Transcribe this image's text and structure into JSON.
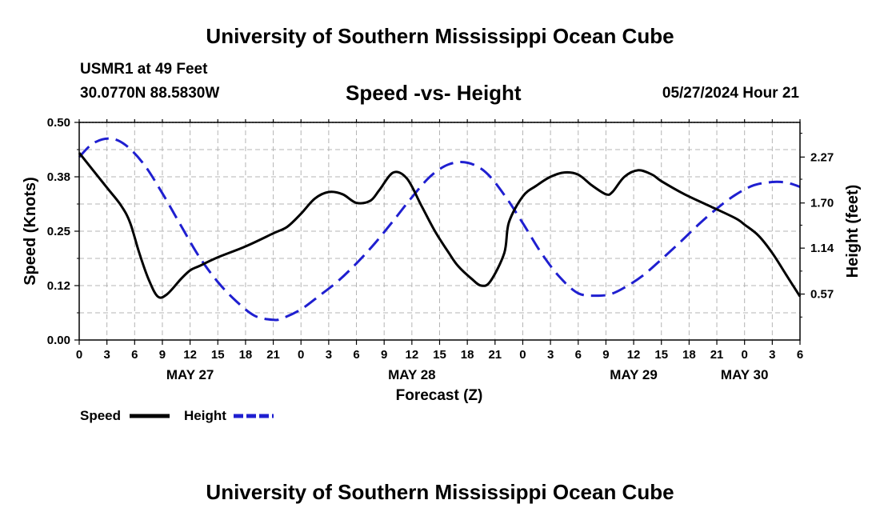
{
  "header": {
    "title": "University of Southern Mississippi Ocean Cube",
    "station": "USMR1 at 49 Feet",
    "coords": "30.0770N  88.5830W",
    "subtitle": "Speed -vs- Height",
    "datetime": "05/27/2024 Hour 21"
  },
  "footer": {
    "title": "University of Southern Mississippi Ocean Cube"
  },
  "chart_data": {
    "type": "line",
    "title": "Speed -vs- Height",
    "xlabel": "Forecast (Z)",
    "ylabel": "Speed (Knots)",
    "y2label": "Height (feet)",
    "x_unit": "forecast hours from May 27 00Z",
    "xlim": [
      0,
      78
    ],
    "ylim": [
      0,
      0.5
    ],
    "y2lim": [
      0,
      2.7
    ],
    "grid": true,
    "x_tick_values": [
      0,
      3,
      6,
      9,
      12,
      15,
      18,
      21,
      24,
      27,
      30,
      33,
      36,
      39,
      42,
      45,
      48,
      51,
      54,
      57,
      60,
      63,
      66,
      69,
      72,
      75,
      78
    ],
    "x_tick_labels": [
      "0",
      "3",
      "6",
      "9",
      "12",
      "15",
      "18",
      "21",
      "0",
      "3",
      "6",
      "9",
      "12",
      "15",
      "18",
      "21",
      "0",
      "3",
      "6",
      "9",
      "12",
      "15",
      "18",
      "21",
      "0",
      "3",
      "6"
    ],
    "day_labels": [
      {
        "label": "MAY 27",
        "x": 12
      },
      {
        "label": "MAY 28",
        "x": 36
      },
      {
        "label": "MAY 29",
        "x": 60
      },
      {
        "label": "MAY 30",
        "x": 72
      }
    ],
    "y_ticks": [
      "0.00",
      "0.12",
      "0.25",
      "0.38",
      "0.50"
    ],
    "y_tick_values": [
      0,
      0.125,
      0.25,
      0.375,
      0.5
    ],
    "y2_ticks": [
      "0.57",
      "1.14",
      "1.70",
      "2.27"
    ],
    "y2_tick_values": [
      0.57,
      1.14,
      1.7,
      2.27
    ],
    "series": [
      {
        "name": "Speed",
        "axis": "left",
        "color": "#000000",
        "dash": "solid",
        "x": [
          0,
          1.5,
          3,
          4.5,
          5.5,
          6.5,
          7.5,
          8.5,
          9.5,
          11,
          12,
          13,
          15,
          18,
          21,
          22.5,
          24,
          25.5,
          27,
          28.5,
          30,
          31.5,
          32.5,
          34,
          35.5,
          37,
          38.5,
          40,
          41,
          42.5,
          43.5,
          44.5,
          46,
          46.5,
          48,
          49.5,
          51,
          52.5,
          54,
          55.5,
          57,
          57.7,
          59,
          60.5,
          62,
          63,
          65.5,
          68,
          71,
          72,
          73.5,
          75,
          76.5,
          78
        ],
        "values": [
          0.43,
          0.39,
          0.35,
          0.31,
          0.27,
          0.2,
          0.14,
          0.1,
          0.105,
          0.14,
          0.16,
          0.17,
          0.19,
          0.215,
          0.245,
          0.26,
          0.29,
          0.325,
          0.34,
          0.335,
          0.315,
          0.32,
          0.345,
          0.385,
          0.37,
          0.31,
          0.25,
          0.2,
          0.17,
          0.14,
          0.125,
          0.135,
          0.2,
          0.27,
          0.33,
          0.355,
          0.375,
          0.385,
          0.38,
          0.355,
          0.335,
          0.34,
          0.375,
          0.39,
          0.38,
          0.365,
          0.335,
          0.31,
          0.28,
          0.265,
          0.24,
          0.2,
          0.15,
          0.1
        ]
      },
      {
        "name": "Height",
        "axis": "right",
        "color": "#1f1fd0",
        "dash": "dashed",
        "x": [
          0,
          1.5,
          3.3,
          5,
          7,
          9,
          11,
          13,
          15,
          17,
          19,
          21,
          22,
          24,
          26,
          28,
          30,
          32,
          34,
          36,
          38,
          40,
          42,
          44,
          46,
          48,
          50,
          52,
          54,
          56,
          57.5,
          59,
          61,
          63,
          65,
          67,
          69,
          71,
          73,
          75,
          76,
          77,
          78
        ],
        "values": [
          2.27,
          2.44,
          2.5,
          2.42,
          2.18,
          1.82,
          1.42,
          1.03,
          0.72,
          0.48,
          0.3,
          0.25,
          0.27,
          0.38,
          0.55,
          0.73,
          0.95,
          1.2,
          1.48,
          1.77,
          2.03,
          2.18,
          2.2,
          2.08,
          1.8,
          1.45,
          1.08,
          0.78,
          0.58,
          0.55,
          0.57,
          0.65,
          0.8,
          1.0,
          1.21,
          1.43,
          1.63,
          1.8,
          1.92,
          1.96,
          1.96,
          1.94,
          1.9
        ]
      }
    ]
  }
}
